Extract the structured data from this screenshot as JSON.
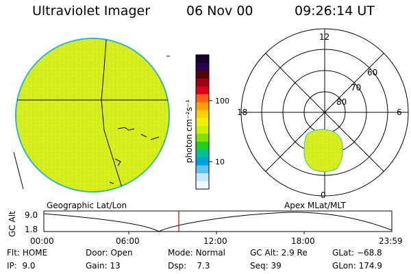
{
  "header": {
    "title": "Ultraviolet Imager",
    "date": "06 Nov 00",
    "time": "09:26:14 UT"
  },
  "colorbar": {
    "unit_label": "photon cm⁻²s⁻¹",
    "ticks": [
      "100",
      "10"
    ],
    "colors": [
      "#1a0030",
      "#2a0050",
      "#5a0000",
      "#a00010",
      "#e00020",
      "#ff6010",
      "#ffa000",
      "#ffd000",
      "#f0f000",
      "#c8f000",
      "#80e000",
      "#20d020",
      "#00c0a0",
      "#00a0e0",
      "#60c0f0",
      "#c0e8f8",
      "#f0f8ff"
    ]
  },
  "geo_panel": {
    "label": "Geographic Lat/Lon",
    "fill_color": "#d8f020"
  },
  "polar_panel": {
    "label": "Apex MLat/MLT",
    "mlt_labels": {
      "top": "12",
      "left": "18",
      "right": "6",
      "bottom": "0"
    },
    "lat_labels": [
      "60",
      "70",
      "80"
    ]
  },
  "altitude_plot": {
    "axis_label": "GC Alt",
    "y_ticks": [
      "9.0",
      "1.8"
    ],
    "x_ticks": [
      "00:00",
      "06:00",
      "12:00",
      "18:00",
      "23:59"
    ],
    "cursor_color": "#cc0000"
  },
  "status": {
    "flt": {
      "label": "Flt:",
      "value": "HOME"
    },
    "ip": {
      "label": "IP:",
      "value": "9.0"
    },
    "door": {
      "label": "Door:",
      "value": "Open"
    },
    "gain": {
      "label": "Gain:",
      "value": "13"
    },
    "mode": {
      "label": "Mode:",
      "value": "Normal"
    },
    "dsp": {
      "label": "Dsp:",
      "value": "7.3"
    },
    "gc_alt": {
      "label": "GC Alt:",
      "value": "2.9 Re"
    },
    "seq": {
      "label": "Seq:",
      "value": "39"
    },
    "glat": {
      "label": "GLat:",
      "value": "−68.8"
    },
    "glon": {
      "label": "GLon:",
      "value": "174.9"
    }
  }
}
